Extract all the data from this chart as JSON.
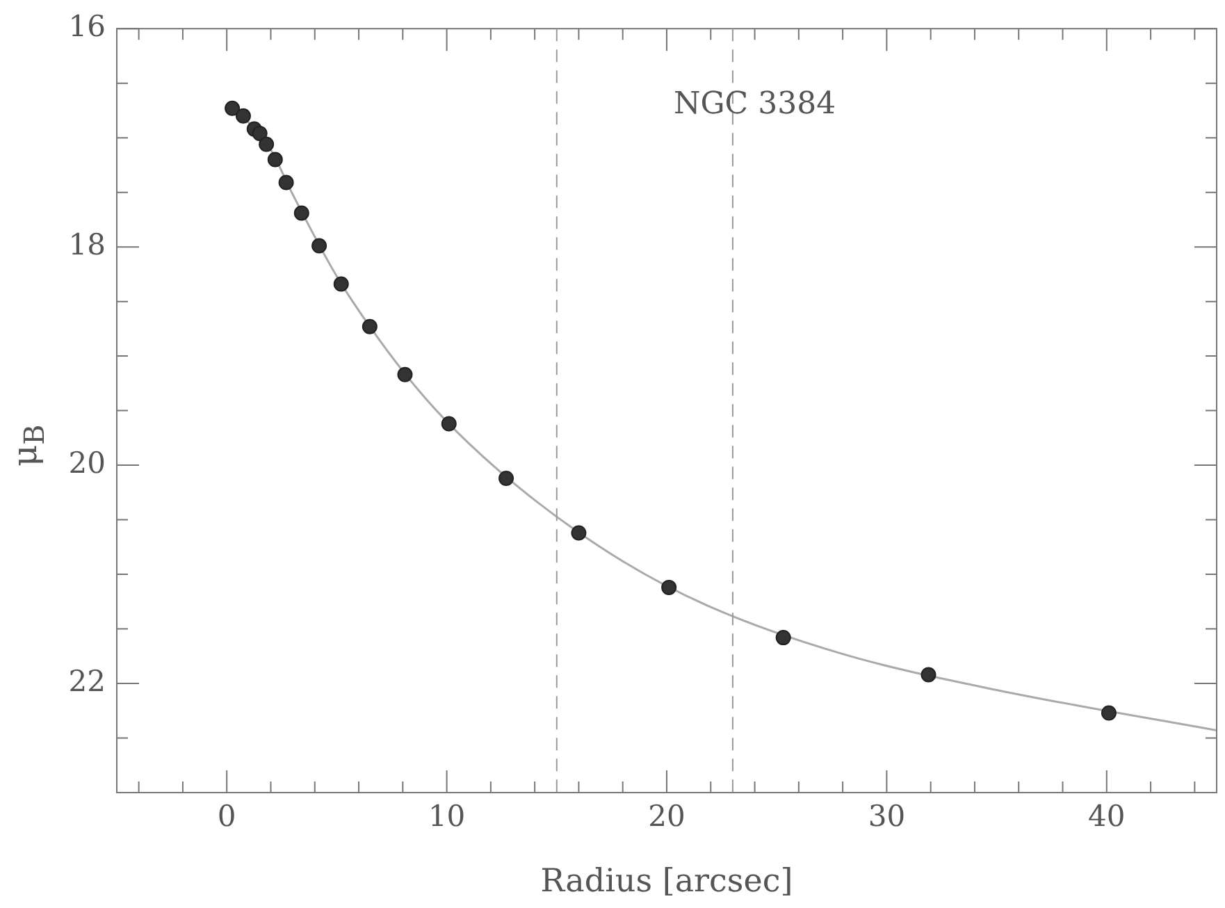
{
  "chart_data": {
    "type": "scatter",
    "xlabel": "Radius [arcsec]",
    "ylabel": "μ$_{B}$",
    "annotations": [
      "NGC 3384"
    ],
    "xlim": [
      -5,
      45
    ],
    "ylim": [
      23,
      16
    ],
    "xticks": [
      {
        "value": -4,
        "label": null
      },
      {
        "value": -2,
        "label": null
      },
      0,
      {
        "value": 2,
        "label": null
      },
      {
        "value": 4,
        "label": null
      },
      {
        "value": 6,
        "label": null
      },
      {
        "value": 8,
        "label": null
      },
      10,
      {
        "value": 12,
        "label": null
      },
      {
        "value": 14,
        "label": null
      },
      {
        "value": 16,
        "label": null
      },
      {
        "value": 18,
        "label": null
      },
      20,
      {
        "value": 22,
        "label": null
      },
      {
        "value": 24,
        "label": null
      },
      {
        "value": 26,
        "label": null
      },
      {
        "value": 28,
        "label": null
      },
      30,
      {
        "value": 32,
        "label": null
      },
      {
        "value": 34,
        "label": null
      },
      {
        "value": 36,
        "label": null
      },
      {
        "value": 38,
        "label": null
      },
      40,
      {
        "value": 42,
        "label": null
      },
      {
        "value": 44,
        "label": null
      }
    ],
    "yticks": [
      16,
      {
        "value": 16.5,
        "label": null
      },
      {
        "value": 17,
        "label": null
      },
      {
        "value": 17.5,
        "label": null
      },
      18,
      {
        "value": 18.5,
        "label": null
      },
      {
        "value": 19,
        "label": null
      },
      {
        "value": 19.5,
        "label": null
      },
      20,
      {
        "value": 20.5,
        "label": null
      },
      {
        "value": 21,
        "label": null
      },
      {
        "value": 21.5,
        "label": null
      },
      22,
      {
        "value": 22.5,
        "label": null
      }
    ],
    "grid": false,
    "legend": false,
    "series": [
      {
        "type": "scatter",
        "color": "#333333",
        "marker": "circle",
        "x": [
          0.25,
          0.75,
          1.25,
          1.5,
          1.8,
          2.2,
          2.7,
          3.4,
          4.2,
          5.2,
          6.5,
          8.1,
          10.1,
          12.7,
          16.0,
          20.1,
          25.3,
          31.9,
          40.1
        ],
        "values": [
          16.73,
          16.8,
          16.92,
          16.96,
          17.06,
          17.2,
          17.41,
          17.69,
          17.99,
          18.34,
          18.73,
          19.17,
          19.62,
          20.12,
          20.62,
          21.12,
          21.58,
          21.92,
          22.27
        ]
      },
      {
        "type": "line",
        "color": "#aaaaaa",
        "marker": "none",
        "line_style": "solid",
        "x": [
          0,
          1,
          2,
          3,
          5,
          7,
          9,
          11,
          14,
          18,
          22,
          28,
          35,
          45
        ],
        "values": [
          16.7,
          16.86,
          17.11,
          17.52,
          18.27,
          18.87,
          19.38,
          19.8,
          20.32,
          20.88,
          21.3,
          21.73,
          22.06,
          22.43
        ]
      }
    ],
    "ref_lines": [
      {
        "axis": "x",
        "value": 15,
        "color": "#999999",
        "line_style": "dashed"
      },
      {
        "axis": "x",
        "value": 23,
        "color": "#999999",
        "line_style": "dashed"
      }
    ]
  }
}
